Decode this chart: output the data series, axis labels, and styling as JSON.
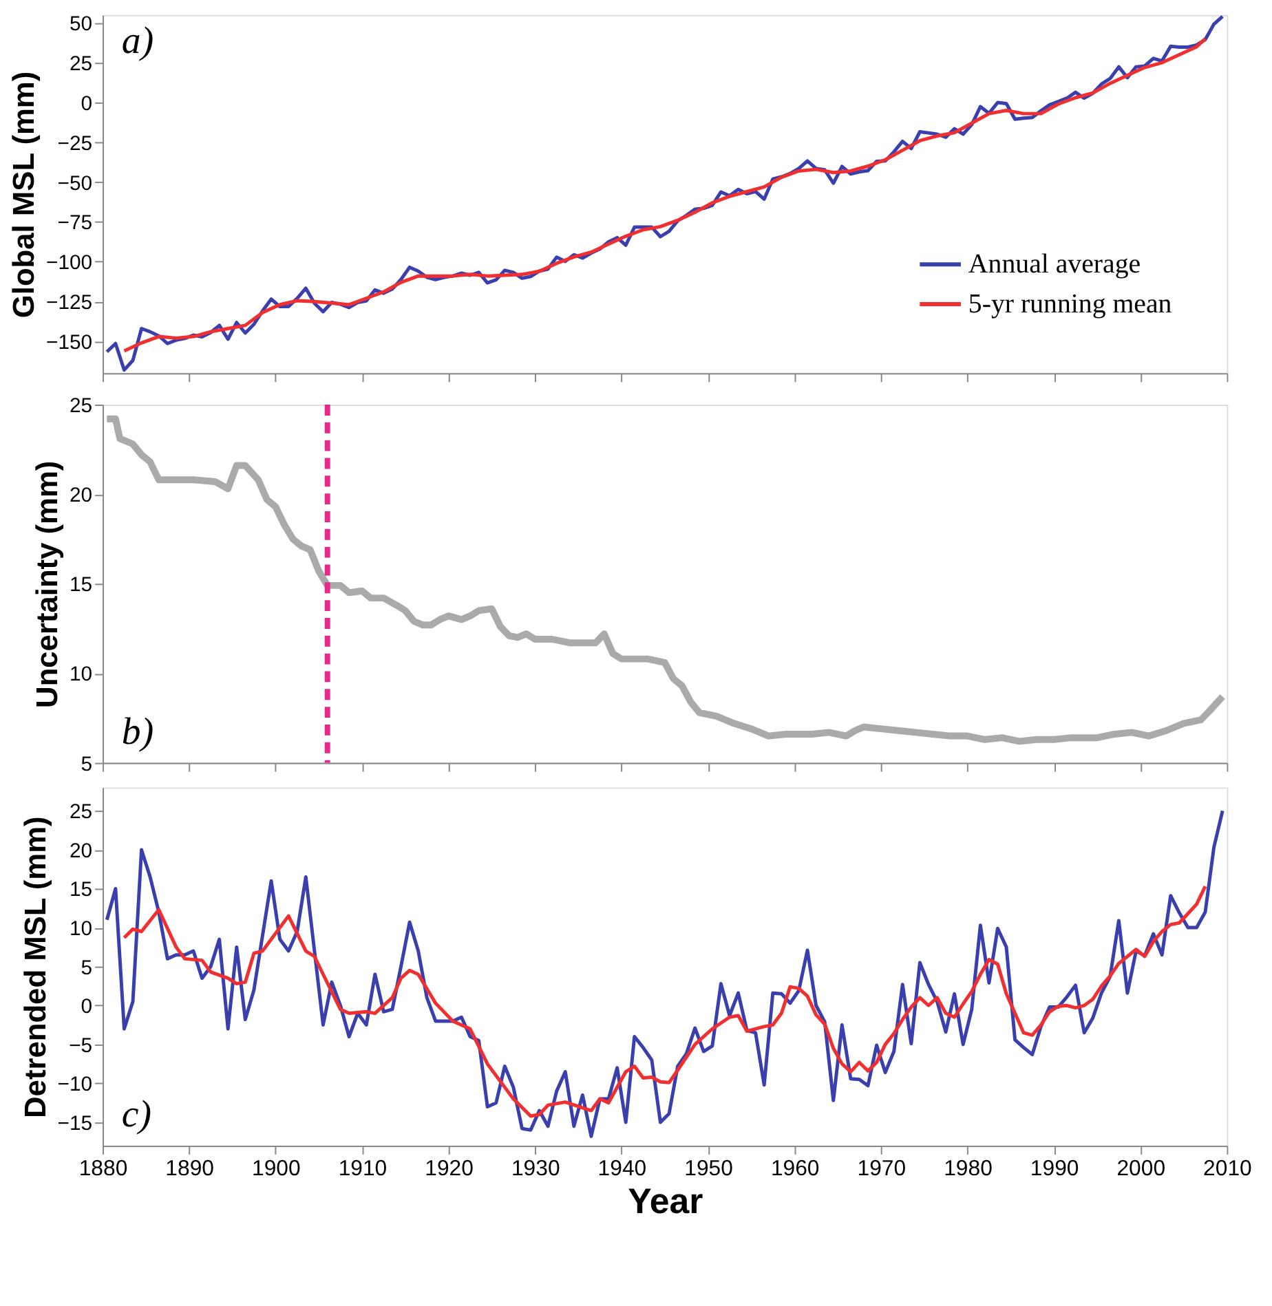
{
  "chart_data": [
    {
      "type": "line",
      "ylabel": "Global MSL (mm)",
      "xlim": [
        1880,
        2010
      ],
      "xticks": [
        1880,
        1890,
        1900,
        1910,
        1920,
        1930,
        1940,
        1950,
        1960,
        1970,
        1980,
        1990,
        2000,
        2010
      ],
      "ylim": [
        -170,
        55
      ],
      "yticks": [
        -150,
        -125,
        -100,
        -75,
        -50,
        -25,
        0,
        25,
        50
      ],
      "tick_labels": "y",
      "grid": false,
      "legend": "bottom right",
      "line_style": "solid",
      "marker": "none",
      "annotations": [
        "a)"
      ],
      "series": [
        {
          "name": "Annual average",
          "color": "#3a3fae",
          "x": [
            1880.5,
            1881.5,
            1882.5,
            1883.5,
            1884.5,
            1885.5,
            1886.5,
            1887.5,
            1888.5,
            1889.5,
            1890.5,
            1891.5,
            1892.5,
            1893.5,
            1894.5,
            1895.5,
            1896.5,
            1897.5,
            1898.5,
            1899.5,
            1900.5,
            1901.5,
            1902.5,
            1903.5,
            1904.5,
            1905.5,
            1906.5,
            1907.5,
            1908.5,
            1909.5,
            1910.5,
            1911.5,
            1912.5,
            1913.5,
            1914.5,
            1915.5,
            1916.5,
            1917.5,
            1918.5,
            1919.5,
            1920.5,
            1921.5,
            1922.5,
            1923.5,
            1924.5,
            1925.5,
            1926.5,
            1927.5,
            1928.5,
            1929.5,
            1930.5,
            1931.5,
            1932.5,
            1933.5,
            1934.5,
            1935.5,
            1936.5,
            1937.5,
            1938.5,
            1939.5,
            1940.5,
            1941.5,
            1942.5,
            1943.5,
            1944.5,
            1945.5,
            1946.5,
            1947.5,
            1948.5,
            1949.5,
            1950.5,
            1951.5,
            1952.5,
            1953.5,
            1954.5,
            1955.5,
            1956.5,
            1957.5,
            1958.5,
            1959.5,
            1960.5,
            1961.5,
            1962.5,
            1963.5,
            1964.5,
            1965.5,
            1966.5,
            1967.5,
            1968.5,
            1969.5,
            1970.5,
            1971.5,
            1972.5,
            1973.5,
            1974.5,
            1975.5,
            1976.5,
            1977.5,
            1978.5,
            1979.5,
            1980.5,
            1981.5,
            1982.5,
            1983.5,
            1984.5,
            1985.5,
            1986.5,
            1987.5,
            1988.5,
            1989.5,
            1990.5,
            1991.5,
            1992.5,
            1993.5,
            1994.5,
            1995.5,
            1996.5,
            1997.5,
            1998.5,
            1999.5,
            2000.5,
            2001.5,
            2002.5,
            2003.5,
            2004.5,
            2005.5,
            2006.5,
            2007.5,
            2008.5,
            2009.5
          ],
          "values": [
            -156.6,
            -151.4,
            -168,
            -162,
            -142,
            -144,
            -146.6,
            -151.4,
            -149.3,
            -148.2,
            -146.1,
            -147.2,
            -144.5,
            -140,
            -148.7,
            -138.2,
            -144.8,
            -139.3,
            -130.9,
            -123.5,
            -128.2,
            -128.2,
            -123,
            -116.7,
            -126.1,
            -131.4,
            -125.6,
            -126.7,
            -128.8,
            -125.6,
            -124.6,
            -117.7,
            -119.8,
            -117.2,
            -111.2,
            -103.5,
            -105.9,
            -109.8,
            -111.2,
            -109.8,
            -109,
            -107.2,
            -108.5,
            -106.7,
            -113.3,
            -111.4,
            -105.4,
            -106.7,
            -110.4,
            -109.3,
            -105.9,
            -104.6,
            -97.2,
            -99.8,
            -95.6,
            -97.7,
            -94.6,
            -92,
            -87.5,
            -84.9,
            -89.6,
            -78.3,
            -78.3,
            -78.3,
            -84.3,
            -80.9,
            -74.3,
            -70.9,
            -67,
            -66.5,
            -64.6,
            -56.2,
            -58.6,
            -54.6,
            -57.3,
            -55.9,
            -60.7,
            -48.1,
            -46.7,
            -44.6,
            -41.5,
            -36.7,
            -41.5,
            -42.3,
            -50.7,
            -40.2,
            -44.9,
            -43.6,
            -42.8,
            -37,
            -36.7,
            -31,
            -24.4,
            -28.9,
            -18.4,
            -19.1,
            -19.9,
            -21.8,
            -16.5,
            -19.9,
            -13.9,
            -2.6,
            -6.8,
            0,
            -0.7,
            -10.5,
            -9.9,
            -9.4,
            -5.2,
            -1.5,
            0.6,
            2.7,
            6.4,
            2.7,
            5.8,
            11.6,
            15,
            22.4,
            15.6,
            22.4,
            22.9,
            27.7,
            26.1,
            35.3,
            34.8,
            34.8,
            36.1,
            39.5,
            49.2,
            54
          ]
        },
        {
          "name": "5-yr running mean",
          "color": "#f03030",
          "x": [
            1882.5,
            1884.5,
            1886.5,
            1888.5,
            1890.5,
            1892.5,
            1894.5,
            1896.5,
            1898.5,
            1900.5,
            1902.5,
            1904.5,
            1906.5,
            1908.5,
            1910.5,
            1912.5,
            1914.5,
            1916.5,
            1918.5,
            1920.5,
            1922.5,
            1924.5,
            1926.5,
            1928.5,
            1930.5,
            1932.5,
            1934.5,
            1936.5,
            1938.5,
            1940.5,
            1942.5,
            1944.5,
            1946.5,
            1948.5,
            1950.5,
            1952.5,
            1954.5,
            1956.5,
            1958.5,
            1960.5,
            1962.5,
            1964.5,
            1966.5,
            1968.5,
            1970.5,
            1972.5,
            1974.5,
            1976.5,
            1978.5,
            1980.5,
            1982.5,
            1984.5,
            1986.5,
            1988.5,
            1990.5,
            1992.5,
            1994.5,
            1996.5,
            1998.5,
            2000.5,
            2002.5,
            2004.5,
            2006.5,
            2007.5
          ],
          "values": [
            -156,
            -151,
            -147,
            -148,
            -147,
            -144,
            -142,
            -140,
            -132,
            -127,
            -124.5,
            -125,
            -126,
            -127,
            -123,
            -119,
            -113,
            -109,
            -109,
            -109,
            -108,
            -109,
            -108.5,
            -108,
            -106,
            -101,
            -97,
            -94,
            -89,
            -84,
            -80,
            -78,
            -74,
            -69,
            -63,
            -59,
            -56,
            -53,
            -47,
            -43,
            -42,
            -44,
            -43,
            -40,
            -36,
            -30,
            -24,
            -21,
            -19,
            -13,
            -7,
            -5,
            -7,
            -7,
            -1,
            3,
            6,
            12,
            17,
            22,
            25,
            30,
            35,
            40
          ]
        }
      ]
    },
    {
      "type": "line",
      "ylabel": "Uncertainty (mm)",
      "xlim": [
        1880,
        2010
      ],
      "xticks": [
        1880,
        1890,
        1900,
        1910,
        1920,
        1930,
        1940,
        1950,
        1960,
        1970,
        1980,
        1990,
        2000,
        2010
      ],
      "ylim": [
        5,
        25
      ],
      "yticks": [
        5,
        10,
        15,
        20,
        25
      ],
      "tick_labels": "y",
      "grid": false,
      "line_style": "solid",
      "marker": "none",
      "annotations": [
        "b)"
      ],
      "ref_lines": [
        {
          "axis": "x",
          "value": 1906,
          "label": null,
          "color": "#e8288c",
          "line_style": "dashed"
        }
      ],
      "series": [
        {
          "color": "#aaaaaa",
          "x": [
            1880.5,
            1881.5,
            1882,
            1883.5,
            1884.5,
            1885.5,
            1886.5,
            1890.5,
            1893,
            1894.5,
            1895.5,
            1896.5,
            1898,
            1899,
            1900,
            1901,
            1902,
            1903,
            1904,
            1905,
            1906,
            1907.5,
            1908.5,
            1910,
            1911,
            1912.5,
            1914,
            1915,
            1916,
            1917,
            1918,
            1919,
            1920,
            1921.5,
            1922.5,
            1923.5,
            1925,
            1926,
            1927,
            1928,
            1929,
            1930,
            1932,
            1934,
            1937,
            1938,
            1939,
            1940,
            1943,
            1944,
            1945,
            1946,
            1947,
            1948,
            1949,
            1951,
            1953,
            1955,
            1956,
            1957,
            1959,
            1962,
            1964,
            1966,
            1967,
            1968,
            1970,
            1972,
            1974,
            1976,
            1978,
            1980,
            1982,
            1984,
            1986,
            1988,
            1990,
            1992,
            1995,
            1997,
            1999,
            2001,
            2003,
            2005,
            2007,
            2008,
            2009.5
          ],
          "values": [
            24.2,
            24.2,
            23.1,
            22.8,
            22.2,
            21.8,
            20.8,
            20.8,
            20.7,
            20.3,
            21.6,
            21.6,
            20.8,
            19.7,
            19.3,
            18.3,
            17.5,
            17.1,
            16.9,
            15.7,
            14.9,
            14.9,
            14.5,
            14.6,
            14.2,
            14.2,
            13.8,
            13.5,
            12.9,
            12.7,
            12.7,
            13,
            13.2,
            13,
            13.2,
            13.5,
            13.6,
            12.6,
            12.1,
            12,
            12.2,
            11.9,
            11.9,
            11.7,
            11.7,
            12.2,
            11.1,
            10.8,
            10.8,
            10.7,
            10.6,
            9.7,
            9.3,
            8.4,
            7.8,
            7.6,
            7.2,
            6.9,
            6.7,
            6.5,
            6.6,
            6.6,
            6.7,
            6.5,
            6.8,
            7,
            6.9,
            6.8,
            6.7,
            6.6,
            6.5,
            6.5,
            6.3,
            6.4,
            6.2,
            6.3,
            6.3,
            6.4,
            6.4,
            6.6,
            6.7,
            6.5,
            6.8,
            7.2,
            7.4,
            7.9,
            8.7
          ]
        }
      ]
    },
    {
      "type": "line",
      "ylabel": "Detrended MSL (mm)",
      "xlabel": "Year",
      "xlim": [
        1880,
        2010
      ],
      "xticks": [
        1880,
        1890,
        1900,
        1910,
        1920,
        1930,
        1940,
        1950,
        1960,
        1970,
        1980,
        1990,
        2000,
        2010
      ],
      "ylim": [
        -18,
        28
      ],
      "yticks": [
        -15,
        -10,
        -5,
        0,
        5,
        10,
        15,
        20,
        25
      ],
      "grid": false,
      "line_style": "solid",
      "marker": "none",
      "annotations": [
        "c)"
      ],
      "series": [
        {
          "color": "#3a3fae",
          "x": [
            1880.5,
            1881.5,
            1882.5,
            1883.5,
            1884.5,
            1885.5,
            1886.5,
            1887.5,
            1888.5,
            1889.5,
            1890.5,
            1891.5,
            1892.5,
            1893.5,
            1894.5,
            1895.5,
            1896.5,
            1897.5,
            1898.5,
            1899.5,
            1900.5,
            1901.5,
            1902.5,
            1903.5,
            1904.5,
            1905.5,
            1906.5,
            1907.5,
            1908.5,
            1909.5,
            1910.5,
            1911.5,
            1912.5,
            1913.5,
            1914.5,
            1915.5,
            1916.5,
            1917.5,
            1918.5,
            1919.5,
            1920.5,
            1921.5,
            1922.5,
            1923.5,
            1924.5,
            1925.5,
            1926.5,
            1927.5,
            1928.5,
            1929.5,
            1930.5,
            1931.5,
            1932.5,
            1933.5,
            1934.5,
            1935.5,
            1936.5,
            1937.5,
            1938.5,
            1939.5,
            1940.5,
            1941.5,
            1942.5,
            1943.5,
            1944.5,
            1945.5,
            1946.5,
            1947.5,
            1948.5,
            1949.5,
            1950.5,
            1951.5,
            1952.5,
            1953.5,
            1954.5,
            1955.5,
            1956.5,
            1957.5,
            1958.5,
            1959.5,
            1960.5,
            1961.5,
            1962.5,
            1963.5,
            1964.5,
            1965.5,
            1966.5,
            1967.5,
            1968.5,
            1969.5,
            1970.5,
            1971.5,
            1972.5,
            1973.5,
            1974.5,
            1975.5,
            1976.5,
            1977.5,
            1978.5,
            1979.5,
            1980.5,
            1981.5,
            1982.5,
            1983.5,
            1984.5,
            1985.5,
            1986.5,
            1987.5,
            1988.5,
            1989.5,
            1990.5,
            1991.5,
            1992.5,
            1993.5,
            1994.5,
            1995.5,
            1996.5,
            1997.5,
            1998.5,
            1999.5,
            2000.5,
            2001.5,
            2002.5,
            2003.5,
            2004.5,
            2005.5,
            2006.5,
            2007.5,
            2008.5,
            2009.5
          ],
          "values": [
            11,
            15,
            -3,
            0.5,
            20,
            16.5,
            12,
            6,
            6.5,
            6.5,
            7,
            3.5,
            5,
            8.5,
            -3,
            7.5,
            -1.8,
            2,
            9,
            16,
            8.5,
            7,
            9.5,
            16.5,
            7,
            -2.5,
            3,
            0,
            -4,
            -1,
            -2.5,
            4,
            -0.8,
            -0.5,
            5,
            10.7,
            7,
            1,
            -2,
            -2,
            -2,
            -1.5,
            -4,
            -4.5,
            -13,
            -12.5,
            -7.8,
            -10.5,
            -15.8,
            -16,
            -13.5,
            -15.5,
            -11,
            -8.5,
            -15.5,
            -11.5,
            -16.8,
            -12,
            -12,
            -8,
            -15,
            -4,
            -5.4,
            -7,
            -15,
            -13.9,
            -7.8,
            -6.2,
            -2.9,
            -5.9,
            -5.2,
            2.8,
            -1.3,
            1.6,
            -3.2,
            -3.5,
            -10.2,
            1.6,
            1.5,
            0.3,
            1.9,
            7.1,
            0,
            -2.1,
            -12.2,
            -2.5,
            -9.4,
            -9.5,
            -10.3,
            -5.1,
            -8.6,
            -5.9,
            2.7,
            -4.9,
            5.5,
            2.7,
            0.5,
            -3.4,
            1.5,
            -5,
            -0.5,
            10.3,
            2.9,
            9.9,
            7.5,
            -4.4,
            -5.4,
            -6.3,
            -2.7,
            -0.2,
            -0.2,
            1.1,
            2.6,
            -3.5,
            -1.6,
            1.6,
            3.7,
            10.9,
            1.6,
            7,
            6.4,
            9.2,
            6.5,
            14.1,
            11.9,
            10,
            10,
            12,
            20.3,
            25
          ]
        },
        {
          "color": "#f03030",
          "x": [
            1882.5,
            1883.5,
            1884.5,
            1886.5,
            1888.5,
            1889.5,
            1891.5,
            1892.5,
            1894.5,
            1895.5,
            1896.5,
            1897.5,
            1898.5,
            1901.5,
            1903.5,
            1904.5,
            1905.5,
            1907.5,
            1908.5,
            1910.5,
            1911.5,
            1913.5,
            1914.5,
            1915.5,
            1916.5,
            1918.5,
            1920.5,
            1922.5,
            1924.5,
            1926.5,
            1927.5,
            1929.5,
            1930.5,
            1931.5,
            1933.5,
            1936.5,
            1937.5,
            1938.5,
            1940.5,
            1941.5,
            1942.5,
            1943.5,
            1944.5,
            1945.5,
            1946.5,
            1948.5,
            1950.5,
            1952.5,
            1953.5,
            1954.5,
            1956.5,
            1957.5,
            1958.5,
            1959.5,
            1960.5,
            1961.5,
            1962.5,
            1963.5,
            1964.5,
            1965.5,
            1966.5,
            1967.5,
            1968.5,
            1969.5,
            1970.5,
            1971.5,
            1972.5,
            1973.5,
            1974.5,
            1975.5,
            1976.5,
            1977.5,
            1978.5,
            1979.5,
            1980.5,
            1981.5,
            1982.5,
            1983.5,
            1984.5,
            1985.5,
            1986.5,
            1987.5,
            1988.5,
            1989.5,
            1990.5,
            1991.5,
            1992.5,
            1993.5,
            1994.5,
            1995.5,
            1996.5,
            1997.5,
            1998.5,
            1999.5,
            2000.5,
            2001.5,
            2002.5,
            2003.5,
            2004.5,
            2005.5,
            2006.5,
            2007.5
          ],
          "values": [
            8.7,
            9.8,
            9.5,
            12.3,
            7.5,
            6,
            5.8,
            4.3,
            3.5,
            2.8,
            3,
            6.7,
            7,
            11.5,
            7,
            6.3,
            4,
            -0.5,
            -1,
            -0.8,
            -1,
            1,
            3.5,
            4.5,
            4,
            0.3,
            -2,
            -3,
            -7.5,
            -10.5,
            -12,
            -14.2,
            -14,
            -12.8,
            -12.4,
            -13.5,
            -12,
            -12.5,
            -8.5,
            -7.8,
            -9.3,
            -9.2,
            -9.8,
            -9.9,
            -8.3,
            -5,
            -3,
            -1.5,
            -1.3,
            -3.3,
            -2.7,
            -2.5,
            -1,
            2.4,
            2.2,
            1.2,
            -1.2,
            -2.4,
            -5.5,
            -7.5,
            -8.5,
            -7.3,
            -8.4,
            -7.3,
            -5,
            -3.6,
            -1.8,
            -0.2,
            1,
            0,
            1,
            -1,
            -1.5,
            0.2,
            1.8,
            4,
            5.9,
            5.3,
            1.5,
            -1,
            -3.5,
            -3.8,
            -2.5,
            -0.8,
            -0.1,
            0,
            -0.3,
            0,
            0.8,
            2.5,
            3.8,
            5.4,
            6.3,
            7.2,
            6.3,
            8.2,
            9.5,
            10.4,
            10.6,
            11.8,
            13,
            15.3
          ]
        }
      ]
    }
  ]
}
